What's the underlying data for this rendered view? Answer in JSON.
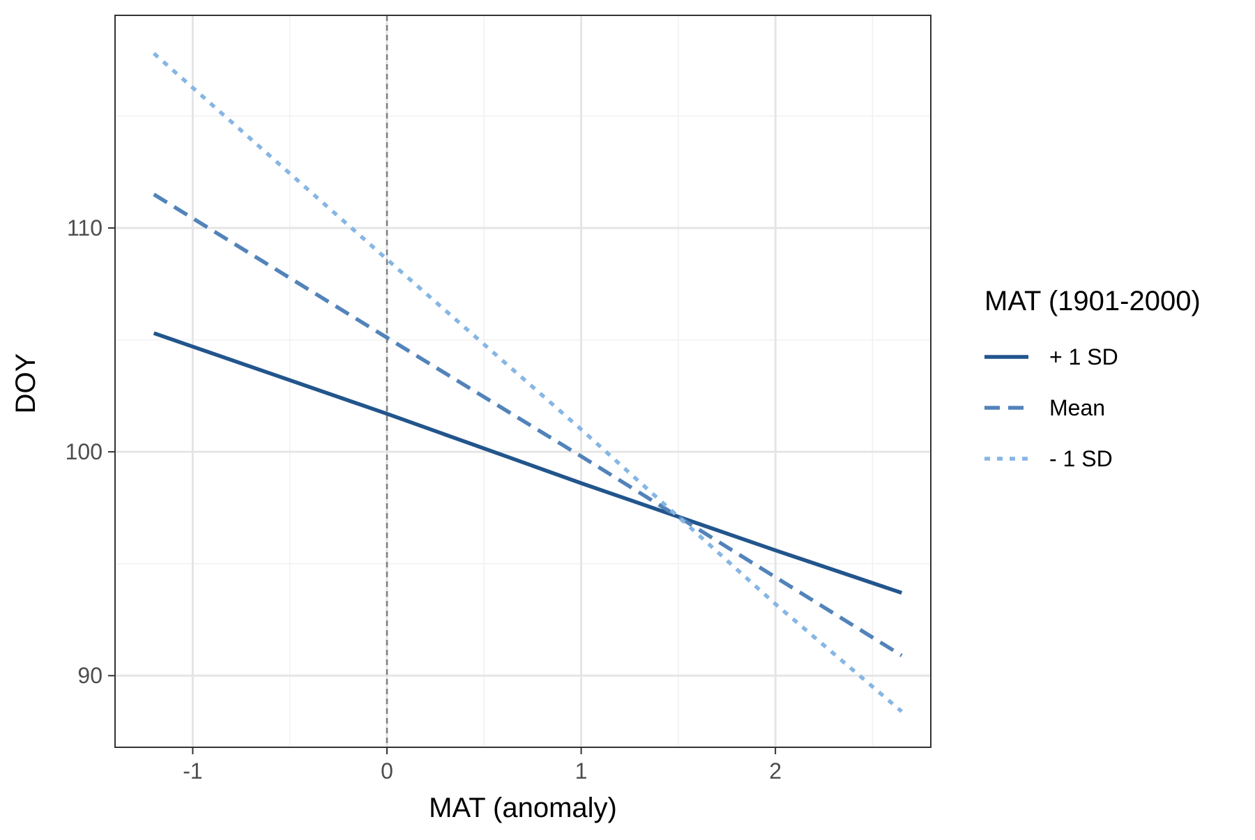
{
  "chart_data": {
    "type": "line",
    "title": "",
    "xlabel": "MAT (anomaly)",
    "ylabel": "DOY",
    "xlim": [
      -1.4,
      2.8
    ],
    "ylim": [
      86.8,
      119.5
    ],
    "x_ticks": [
      -1,
      0,
      1,
      2
    ],
    "x_tick_labels": [
      "-1",
      "0",
      "1",
      "2"
    ],
    "y_ticks": [
      90,
      100,
      110
    ],
    "y_tick_labels": [
      "90",
      "100",
      "110"
    ],
    "x_minor_grid": [
      -0.5,
      0.5,
      1.5,
      2.5
    ],
    "y_minor_grid": [
      95,
      105,
      115
    ],
    "grid": true,
    "reference_line": {
      "x": 0,
      "style": "dashed",
      "color": "#7f7f7f"
    },
    "legend": {
      "title": "MAT (1901-2000)",
      "position": "right"
    },
    "series": [
      {
        "name": "+ 1 SD",
        "color": "#22558C",
        "dash": "solid",
        "x": [
          -1.2,
          0,
          1,
          1.5,
          2,
          2.65
        ],
        "y": [
          105.3,
          101.7,
          98.6,
          97.1,
          95.6,
          93.7
        ]
      },
      {
        "name": "Mean",
        "color": "#5283BA",
        "dash": "dashed",
        "x": [
          -1.2,
          0,
          1,
          1.5,
          2,
          2.65
        ],
        "y": [
          111.5,
          105.1,
          99.8,
          97.1,
          94.4,
          90.9
        ]
      },
      {
        "name": "- 1 SD",
        "color": "#86B6E4",
        "dash": "dotted",
        "x": [
          -1.2,
          0,
          1,
          1.5,
          2,
          2.65
        ],
        "y": [
          117.8,
          108.6,
          101.0,
          97.1,
          93.2,
          88.4
        ]
      }
    ]
  }
}
